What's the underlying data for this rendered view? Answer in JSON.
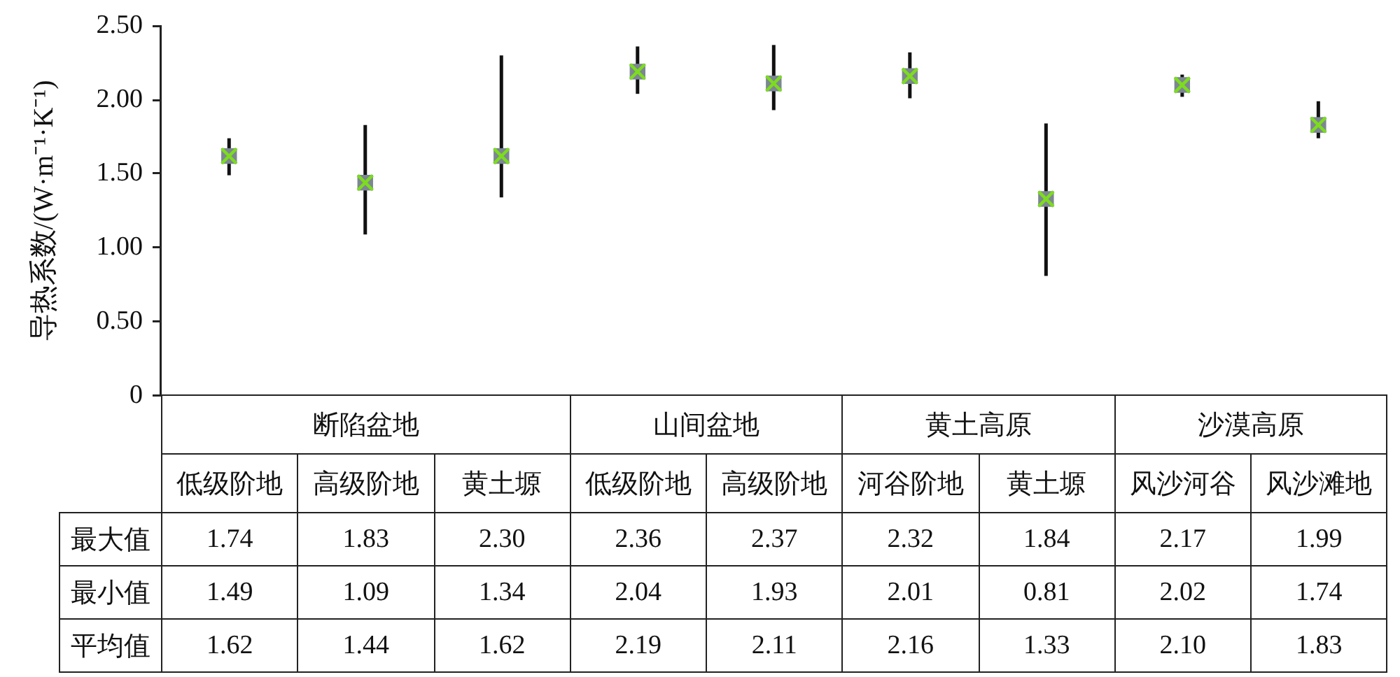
{
  "chart_data": {
    "type": "scatter",
    "categories": [
      "低级阶地",
      "高级阶地",
      "黄土塬",
      "低级阶地",
      "高级阶地",
      "河谷阶地",
      "黄土塬",
      "风沙河谷",
      "风沙滩地"
    ],
    "series": [
      {
        "color": "#7ddc1f",
        "values": [
          1.62,
          1.44,
          1.62,
          2.19,
          2.11,
          2.16,
          1.33,
          2.1,
          1.83
        ],
        "errors": [
          [
            1.49,
            1.74
          ],
          [
            1.09,
            1.83
          ],
          [
            1.34,
            2.3
          ],
          [
            2.04,
            2.36
          ],
          [
            1.93,
            2.37
          ],
          [
            2.01,
            2.32
          ],
          [
            0.81,
            1.84
          ],
          [
            2.02,
            2.17
          ],
          [
            1.74,
            1.99
          ]
        ]
      }
    ],
    "ylabel": "导热系数/(W·m⁻¹·K⁻¹)",
    "ylim": [
      0,
      2.5
    ],
    "yticks": [
      0,
      {
        "value": 0.5,
        "label": "0.50"
      },
      {
        "value": 1,
        "label": "1.00"
      },
      {
        "value": 1.5,
        "label": "1.50"
      },
      {
        "value": 2,
        "label": "2.00"
      },
      {
        "value": 2.5,
        "label": "2.50"
      }
    ],
    "marker": "cross",
    "annotations": [
      "断陷盆地",
      "山间盆地",
      "黄土高原",
      "沙漠高原",
      "最大值",
      "1.74",
      "1.83",
      "2.30",
      "2.36",
      "2.37",
      "2.32",
      "1.84",
      "2.17",
      "1.99",
      "最小值",
      "1.49",
      "1.09",
      "1.34",
      "2.04",
      "1.93",
      "2.01",
      "0.81",
      "2.02",
      "1.74",
      "平均值",
      "1.62",
      "1.44",
      "1.62",
      "2.19",
      "2.11",
      "2.16",
      "1.33",
      "2.10",
      "1.83"
    ]
  }
}
